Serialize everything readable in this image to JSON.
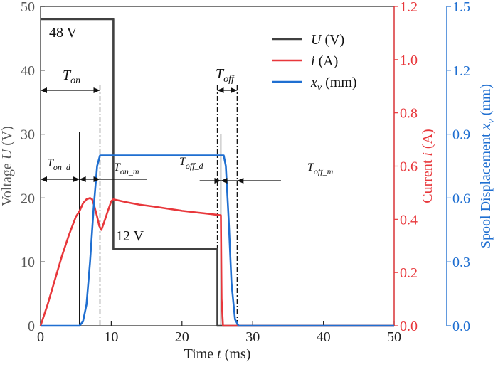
{
  "chart_data": {
    "type": "line",
    "title": "",
    "x": {
      "label_prefix": "Time ",
      "label_var": "t",
      "label_suffix": " (ms)",
      "range": [
        0,
        50
      ],
      "ticks": [
        0,
        10,
        20,
        30,
        40,
        50
      ]
    },
    "y_left": {
      "label_prefix": "Voltage ",
      "label_var": "U",
      "label_suffix": " (V)",
      "range": [
        0,
        50
      ],
      "ticks": [
        0,
        10,
        20,
        30,
        40,
        50
      ],
      "color": "#595959"
    },
    "y_right1": {
      "label_prefix": "Current ",
      "label_var": "i",
      "label_suffix": " (A)",
      "range": [
        0.0,
        1.2
      ],
      "ticks": [
        "0.0",
        "0.2",
        "0.4",
        "0.6",
        "0.8",
        "1.0",
        "1.2"
      ],
      "color": "#e8373b"
    },
    "y_right2": {
      "label_prefix": "Spool Displacement ",
      "label_var": "x",
      "label_sub": "v",
      "label_suffix": " (mm)",
      "range": [
        0.0,
        1.5
      ],
      "ticks": [
        "0.0",
        "0.3",
        "0.6",
        "0.9",
        "1.2",
        "1.5"
      ],
      "color": "#1f6fd1"
    },
    "series": [
      {
        "name": "U (V)",
        "legend_var": "U",
        "legend_sub": "",
        "legend_unit": " (V)",
        "axis": "left",
        "color": "#404040",
        "points": [
          [
            0,
            48
          ],
          [
            10.3,
            48
          ],
          [
            10.3,
            12
          ],
          [
            25,
            12
          ],
          [
            25,
            0
          ],
          [
            50,
            0
          ]
        ]
      },
      {
        "name": "i (A)",
        "legend_var": "i",
        "legend_sub": "",
        "legend_unit": " (A)",
        "axis": "right1",
        "color": "#e8373b",
        "points": [
          [
            0,
            0
          ],
          [
            1,
            0.08
          ],
          [
            2,
            0.17
          ],
          [
            3,
            0.26
          ],
          [
            4,
            0.34
          ],
          [
            5,
            0.41
          ],
          [
            5.5,
            0.43
          ],
          [
            6,
            0.46
          ],
          [
            6.5,
            0.475
          ],
          [
            7,
            0.48
          ],
          [
            7.3,
            0.475
          ],
          [
            7.6,
            0.45
          ],
          [
            8,
            0.41
          ],
          [
            8.3,
            0.375
          ],
          [
            8.6,
            0.36
          ],
          [
            9,
            0.39
          ],
          [
            9.5,
            0.43
          ],
          [
            10,
            0.468
          ],
          [
            10.3,
            0.475
          ],
          [
            12,
            0.465
          ],
          [
            14,
            0.455
          ],
          [
            16,
            0.448
          ],
          [
            18,
            0.44
          ],
          [
            20,
            0.432
          ],
          [
            22,
            0.426
          ],
          [
            24,
            0.42
          ],
          [
            25.5,
            0.415
          ],
          [
            25.6,
            0.1
          ],
          [
            25.8,
            0.0
          ],
          [
            50,
            0.0
          ]
        ]
      },
      {
        "name": "xv (mm)",
        "legend_var": "x",
        "legend_sub": "v",
        "legend_unit": " (mm)",
        "axis": "right2",
        "color": "#1f6fd1",
        "points": [
          [
            0,
            0
          ],
          [
            5.5,
            0
          ],
          [
            6,
            0.02
          ],
          [
            6.5,
            0.1
          ],
          [
            7,
            0.3
          ],
          [
            7.5,
            0.55
          ],
          [
            8,
            0.75
          ],
          [
            8.4,
            0.8
          ],
          [
            25.9,
            0.8
          ],
          [
            26.2,
            0.75
          ],
          [
            26.6,
            0.5
          ],
          [
            27,
            0.2
          ],
          [
            27.5,
            0.03
          ],
          [
            28,
            0
          ],
          [
            50,
            0
          ]
        ]
      }
    ],
    "annotations": {
      "voltage_48": "48 V",
      "voltage_12": "12 V",
      "t_on": {
        "main": "T",
        "sub": "on"
      },
      "t_off": {
        "main": "T",
        "sub": "off"
      },
      "t_on_d": {
        "main": "T",
        "sub": "on_d"
      },
      "t_on_m": {
        "main": "T",
        "sub": "on_m"
      },
      "t_off_d": {
        "main": "T",
        "sub": "off_d"
      },
      "t_off_m": {
        "main": "T",
        "sub": "off_m"
      }
    },
    "markers": {
      "solid_lines_ms": [
        5.5,
        25.5
      ],
      "dashdot_lines_ms": [
        8.4,
        25.0,
        27.8
      ]
    },
    "legend_position": "top-right"
  }
}
